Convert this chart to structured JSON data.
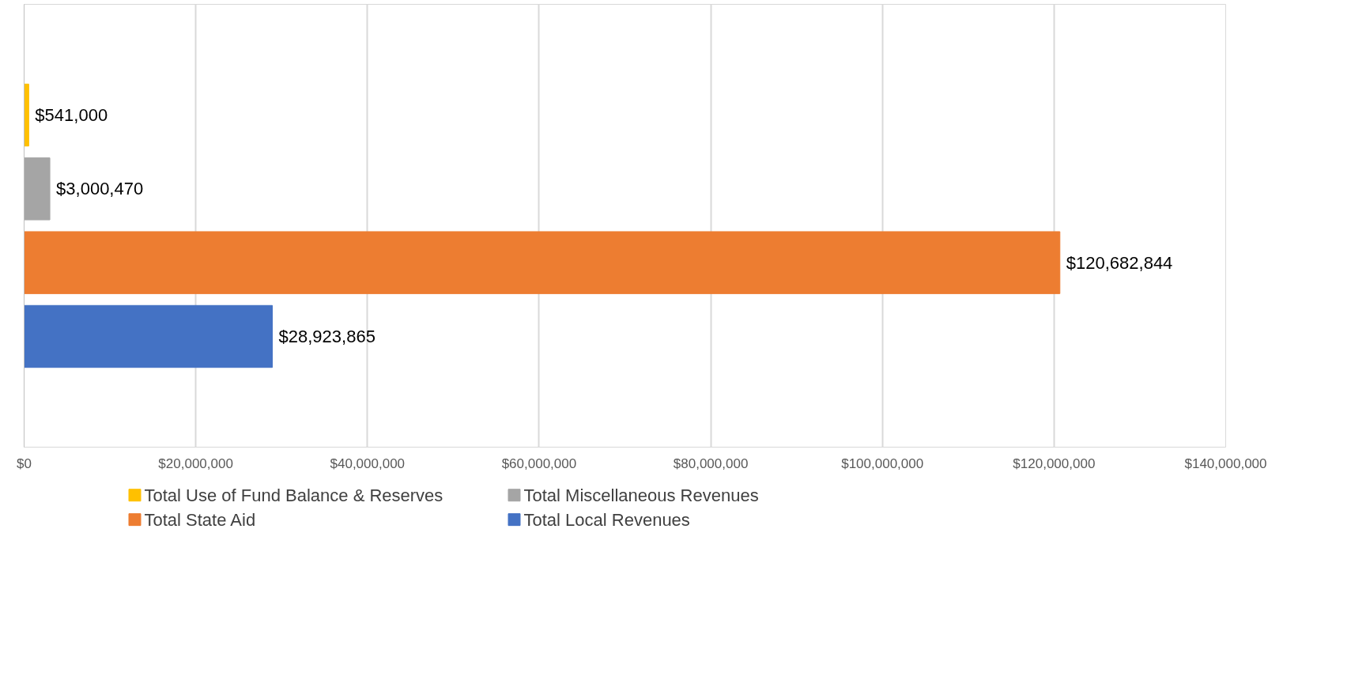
{
  "chart_data": {
    "type": "bar",
    "orientation": "horizontal",
    "categories": [
      null
    ],
    "series": [
      {
        "name": "Total Use of Fund Balance & Reserves",
        "color": "#ffc000",
        "values": [
          541000
        ],
        "value_labels": [
          "$541,000"
        ]
      },
      {
        "name": "Total Miscellaneous Revenues",
        "color": "#a5a5a5",
        "values": [
          3000470
        ],
        "value_labels": [
          "$3,000,470"
        ]
      },
      {
        "name": "Total State Aid",
        "color": "#ed7d31",
        "values": [
          120682844
        ],
        "value_labels": [
          "$120,682,844"
        ]
      },
      {
        "name": "Total Local Revenues",
        "color": "#4472c4",
        "values": [
          28923865
        ],
        "value_labels": [
          "$28,923,865"
        ]
      }
    ],
    "xlim": [
      0,
      140000000
    ],
    "xticks": [
      {
        "value": 0,
        "label": "$0"
      },
      {
        "value": 20000000,
        "label": "$20,000,000"
      },
      {
        "value": 40000000,
        "label": "$40,000,000"
      },
      {
        "value": 60000000,
        "label": "$60,000,000"
      },
      {
        "value": 80000000,
        "label": "$80,000,000"
      },
      {
        "value": 100000000,
        "label": "$100,000,000"
      },
      {
        "value": 120000000,
        "label": "$120,000,000"
      },
      {
        "value": 140000000,
        "label": "$140,000,000"
      }
    ],
    "grid": "x",
    "legend": "bottom"
  }
}
